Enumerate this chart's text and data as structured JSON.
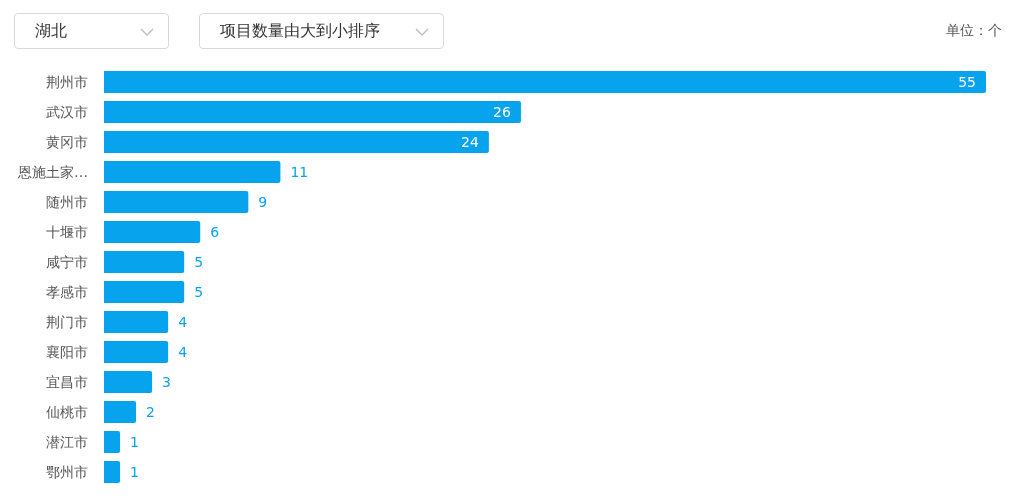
{
  "chart_data": {
    "type": "bar",
    "orientation": "horizontal",
    "categories": [
      "荆州市",
      "武汉市",
      "黄冈市",
      "恩施土家…",
      "随州市",
      "十堰市",
      "咸宁市",
      "孝感市",
      "荆门市",
      "襄阳市",
      "宜昌市",
      "仙桃市",
      "潜江市",
      "鄂州市"
    ],
    "values": [
      55,
      26,
      24,
      11,
      9,
      6,
      5,
      5,
      4,
      4,
      3,
      2,
      1,
      1
    ],
    "color": "#07a3ed",
    "data_labels": true,
    "annotations": [
      "湖北",
      "项目数量由大到小排序",
      "单位：个"
    ]
  }
}
